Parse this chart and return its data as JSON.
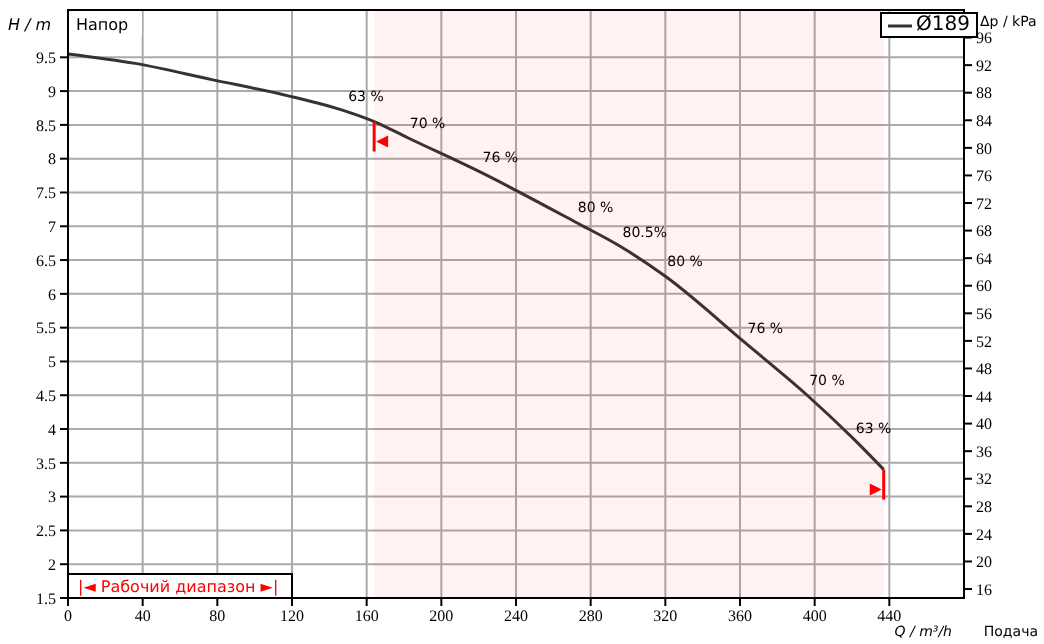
{
  "chart_data": {
    "type": "line",
    "title": "Напор",
    "xlabel": "Q / m³/h",
    "ylabel": "H / m",
    "y2label": "Δp / kPa",
    "x": [
      0,
      36,
      77,
      118,
      149,
      164,
      182,
      221,
      272,
      296,
      320,
      363,
      396,
      421,
      437
    ],
    "series": [
      {
        "name": "Ø189",
        "color": "#333333",
        "values": [
          9.55,
          9.41,
          9.17,
          8.93,
          8.7,
          8.55,
          8.31,
          7.8,
          7.06,
          6.7,
          6.26,
          5.27,
          4.5,
          3.85,
          3.4
        ]
      }
    ],
    "xlim": [
      0,
      480
    ],
    "xticks": [
      0,
      40,
      80,
      120,
      160,
      200,
      240,
      280,
      320,
      360,
      400,
      440
    ],
    "ylim": [
      1.5,
      10.2
    ],
    "yticks": [
      1.5,
      2,
      2.5,
      3,
      3.5,
      4,
      4.5,
      5,
      5.5,
      6,
      6.5,
      7,
      7.5,
      8,
      8.5,
      9,
      9.5
    ],
    "y2lim": [
      14.7,
      100
    ],
    "y2ticks": [
      16,
      20,
      24,
      28,
      32,
      36,
      40,
      44,
      48,
      52,
      56,
      60,
      64,
      68,
      72,
      76,
      80,
      84,
      88,
      92,
      96
    ],
    "bands": [
      {
        "axis": "x",
        "from": 164,
        "to": 437,
        "label": "|◄ Рабочий диапазон ►|",
        "color": "#ff0000"
      }
    ],
    "annotations": [
      {
        "text": "63 %",
        "x": 149,
        "y": 8.7
      },
      {
        "text": "70 %",
        "x": 182,
        "y": 8.31
      },
      {
        "text": "76 %",
        "x": 221,
        "y": 7.8
      },
      {
        "text": "80 %",
        "x": 272,
        "y": 7.06
      },
      {
        "text": "80.5%",
        "x": 296,
        "y": 6.7
      },
      {
        "text": "80 %",
        "x": 320,
        "y": 6.26
      },
      {
        "text": "76 %",
        "x": 363,
        "y": 5.27
      },
      {
        "text": "70 %",
        "x": 396,
        "y": 4.5
      },
      {
        "text": "63 %",
        "x": 421,
        "y": 3.79
      },
      "Подача"
    ],
    "grid": true,
    "legend": "top right",
    "marker": "none",
    "line_style": "solid"
  }
}
